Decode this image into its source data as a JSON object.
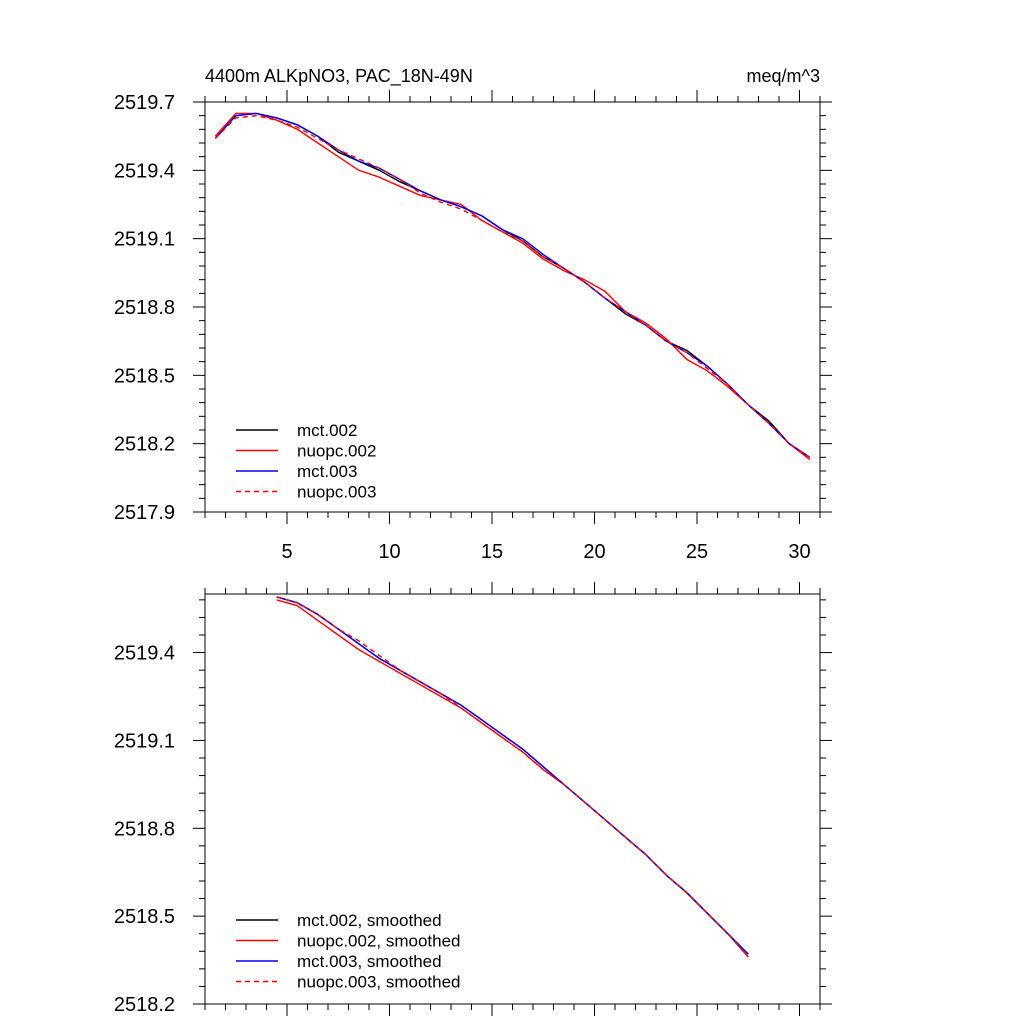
{
  "chart_data": [
    {
      "type": "line",
      "title": "4400m ALKpNO3, PAC_18N-49N",
      "units": "meq/m^3",
      "xlabel": "",
      "ylabel": "",
      "xlim": [
        1,
        31
      ],
      "ylim": [
        2517.9,
        2519.7
      ],
      "x_ticks": [
        "5",
        "10",
        "15",
        "20",
        "25",
        "30"
      ],
      "y_ticks": [
        "2519.7",
        "2519.4",
        "2519.1",
        "2518.8",
        "2518.5",
        "2518.2",
        "2517.9"
      ],
      "legend_position": "bottom-left",
      "x": [
        1.5,
        2.5,
        3.5,
        4.5,
        5.5,
        6.5,
        7.5,
        8.5,
        9.5,
        10.5,
        11.5,
        12.5,
        13.5,
        14.5,
        15.5,
        16.5,
        17.5,
        18.5,
        19.5,
        20.5,
        21.5,
        22.5,
        23.5,
        24.5,
        25.5,
        26.5,
        27.5,
        28.5,
        29.5,
        30.5
      ],
      "series": [
        {
          "name": "mct.002",
          "color": "#000000",
          "dash": false,
          "values": [
            2519.54,
            2519.64,
            2519.65,
            2519.63,
            2519.6,
            2519.55,
            2519.48,
            2519.44,
            2519.4,
            2519.35,
            2519.31,
            2519.27,
            2519.24,
            2519.2,
            2519.14,
            2519.09,
            2519.02,
            2518.97,
            2518.91,
            2518.84,
            2518.77,
            2518.72,
            2518.65,
            2518.61,
            2518.54,
            2518.46,
            2518.37,
            2518.3,
            2518.2,
            2518.14
          ]
        },
        {
          "name": "nuopc.002",
          "color": "#ff0000",
          "dash": false,
          "values": [
            2519.55,
            2519.65,
            2519.65,
            2519.62,
            2519.58,
            2519.52,
            2519.46,
            2519.4,
            2519.37,
            2519.33,
            2519.29,
            2519.27,
            2519.25,
            2519.18,
            2519.13,
            2519.08,
            2519.01,
            2518.96,
            2518.92,
            2518.87,
            2518.78,
            2518.73,
            2518.66,
            2518.57,
            2518.52,
            2518.45,
            2518.37,
            2518.29,
            2518.2,
            2518.13
          ]
        },
        {
          "name": "mct.003",
          "color": "#0000ff",
          "dash": false,
          "values": [
            2519.54,
            2519.64,
            2519.65,
            2519.63,
            2519.6,
            2519.55,
            2519.49,
            2519.44,
            2519.41,
            2519.36,
            2519.31,
            2519.27,
            2519.24,
            2519.2,
            2519.14,
            2519.1,
            2519.03,
            2518.97,
            2518.91,
            2518.84,
            2518.78,
            2518.72,
            2518.65,
            2518.6,
            2518.54,
            2518.46,
            2518.37,
            2518.29,
            2518.2,
            2518.14
          ]
        },
        {
          "name": "nuopc.003",
          "color": "#ff0000",
          "dash": true,
          "values": [
            2519.54,
            2519.63,
            2519.64,
            2519.62,
            2519.59,
            2519.54,
            2519.49,
            2519.45,
            2519.41,
            2519.36,
            2519.3,
            2519.26,
            2519.23,
            2519.18,
            2519.13,
            2519.09,
            2519.02,
            2518.97,
            2518.91,
            2518.84,
            2518.78,
            2518.72,
            2518.65,
            2518.6,
            2518.53,
            2518.46,
            2518.37,
            2518.29,
            2518.2,
            2518.14
          ]
        }
      ]
    },
    {
      "type": "line",
      "title": "",
      "xlabel": "",
      "ylabel": "",
      "xlim": [
        1,
        31
      ],
      "ylim": [
        2518.2,
        2519.6
      ],
      "y_ticks": [
        "2519.4",
        "2519.1",
        "2518.8",
        "2518.5",
        "2518.2"
      ],
      "legend_position": "bottom-left",
      "x": [
        4.5,
        5.5,
        6.5,
        7.5,
        8.5,
        9.5,
        10.5,
        11.5,
        12.5,
        13.5,
        14.5,
        15.5,
        16.5,
        17.5,
        18.5,
        19.5,
        20.5,
        21.5,
        22.5,
        23.5,
        24.5,
        25.5,
        26.5,
        27.5
      ],
      "series": [
        {
          "name": "mct.002, smoothed",
          "color": "#000000",
          "dash": false,
          "values": [
            2519.59,
            2519.57,
            2519.53,
            2519.48,
            2519.43,
            2519.38,
            2519.34,
            2519.3,
            2519.26,
            2519.22,
            2519.17,
            2519.12,
            2519.07,
            2519.01,
            2518.95,
            2518.89,
            2518.83,
            2518.77,
            2518.71,
            2518.64,
            2518.58,
            2518.51,
            2518.44,
            2518.37
          ]
        },
        {
          "name": "nuopc.002, smoothed",
          "color": "#ff0000",
          "dash": false,
          "values": [
            2519.58,
            2519.56,
            2519.51,
            2519.46,
            2519.41,
            2519.37,
            2519.33,
            2519.29,
            2519.25,
            2519.21,
            2519.16,
            2519.11,
            2519.06,
            2519.0,
            2518.95,
            2518.89,
            2518.83,
            2518.77,
            2518.71,
            2518.64,
            2518.58,
            2518.51,
            2518.44,
            2518.36
          ]
        },
        {
          "name": "mct.003, smoothed",
          "color": "#0000ff",
          "dash": false,
          "values": [
            2519.59,
            2519.57,
            2519.53,
            2519.48,
            2519.43,
            2519.38,
            2519.34,
            2519.3,
            2519.26,
            2519.22,
            2519.17,
            2519.12,
            2519.07,
            2519.01,
            2518.95,
            2518.89,
            2518.83,
            2518.77,
            2518.71,
            2518.64,
            2518.58,
            2518.51,
            2518.44,
            2518.37
          ]
        },
        {
          "name": "nuopc.003, smoothed",
          "color": "#ff0000",
          "dash": true,
          "values": [
            2519.59,
            2519.57,
            2519.53,
            2519.48,
            2519.44,
            2519.39,
            2519.34,
            2519.3,
            2519.26,
            2519.21,
            2519.16,
            2519.11,
            2519.06,
            2519.0,
            2518.95,
            2518.89,
            2518.83,
            2518.77,
            2518.71,
            2518.64,
            2518.58,
            2518.51,
            2518.44,
            2518.36
          ]
        }
      ]
    }
  ]
}
